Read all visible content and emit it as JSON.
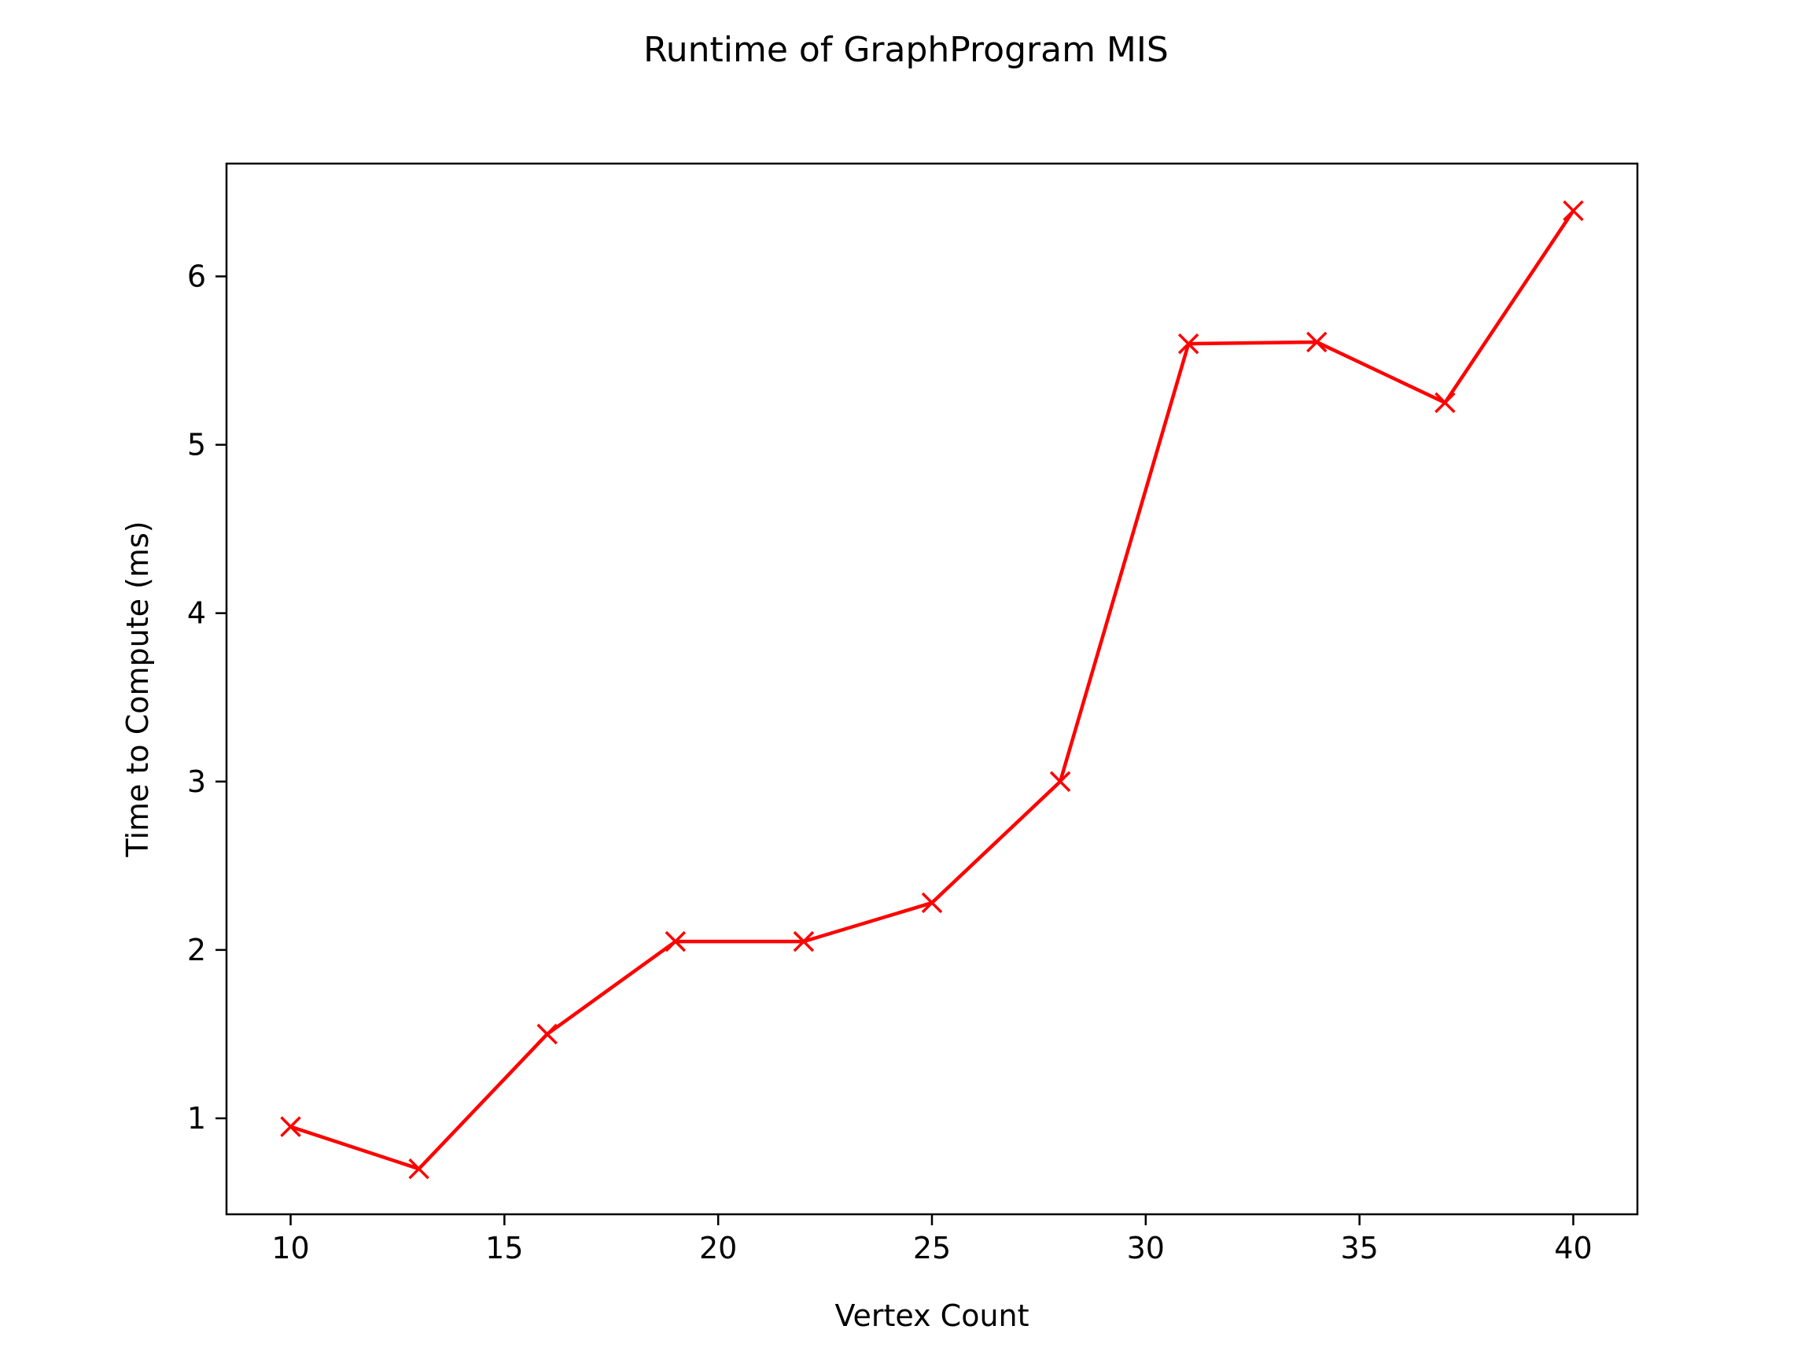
{
  "chart_data": {
    "type": "line",
    "title": "Runtime of GraphProgram MIS",
    "xlabel": "Vertex Count",
    "ylabel": "Time to Compute (ms)",
    "xlim": [
      8.5,
      41.5
    ],
    "ylim": [
      0.43,
      6.67
    ],
    "xticks": [
      10,
      15,
      20,
      25,
      30,
      35,
      40
    ],
    "yticks": [
      1,
      2,
      3,
      4,
      5,
      6
    ],
    "grid": false,
    "legend": "none",
    "marker": "x",
    "series": [
      {
        "color": "#ff0000",
        "x": [
          10,
          13,
          16,
          19,
          22,
          25,
          28,
          31,
          34,
          37,
          40
        ],
        "y": [
          0.95,
          0.7,
          1.5,
          2.05,
          2.05,
          2.28,
          3.0,
          5.6,
          5.61,
          5.25,
          6.39
        ]
      }
    ]
  }
}
